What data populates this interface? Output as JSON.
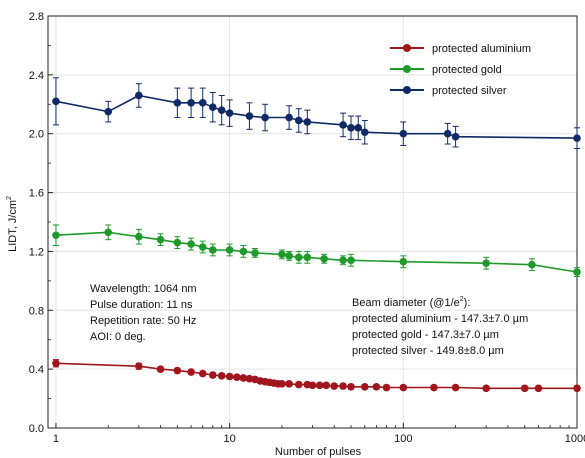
{
  "chart_data": {
    "type": "line",
    "x_scale": "log",
    "xlim": [
      0.9,
      1000
    ],
    "ylim": [
      0,
      2.8
    ],
    "grid": true,
    "xlabel": "Number of pulses",
    "ylabel": "LIDT, J/cm",
    "ylabel_sup": "2",
    "x_ticks": [
      1,
      10,
      100,
      1000
    ],
    "x_tick_labels": [
      "1",
      "10",
      "100",
      "1000"
    ],
    "y_ticks": [
      0,
      0.4,
      0.8,
      1.2,
      1.6,
      2.0,
      2.4,
      2.8
    ],
    "y_tick_labels": [
      "0.0",
      "0.4",
      "0.8",
      "1.2",
      "1.6",
      "2.0",
      "2.4",
      "2.8"
    ],
    "legend_position": "top-right",
    "series": [
      {
        "name": "protected aluminium",
        "color": "#a0161c",
        "x": [
          1,
          3,
          4,
          5,
          6,
          7,
          8,
          9,
          10,
          11,
          12,
          13,
          14,
          15,
          16,
          17,
          18,
          19,
          20,
          22,
          25,
          28,
          30,
          33,
          36,
          40,
          45,
          50,
          60,
          70,
          80,
          100,
          150,
          200,
          300,
          500,
          600,
          1000
        ],
        "y": [
          0.44,
          0.42,
          0.4,
          0.39,
          0.38,
          0.37,
          0.36,
          0.355,
          0.35,
          0.345,
          0.34,
          0.335,
          0.33,
          0.32,
          0.315,
          0.31,
          0.305,
          0.3,
          0.3,
          0.3,
          0.295,
          0.295,
          0.29,
          0.29,
          0.29,
          0.285,
          0.285,
          0.28,
          0.28,
          0.28,
          0.275,
          0.275,
          0.275,
          0.275,
          0.27,
          0.27,
          0.27,
          0.27
        ],
        "err": [
          0.025,
          0.02,
          0.015,
          0.015,
          0.015,
          0.015,
          0.015,
          0.015,
          0.015,
          0.015,
          0.015,
          0.015,
          0.015,
          0.015,
          0.015,
          0.015,
          0.015,
          0.015,
          0.015,
          0.015,
          0.015,
          0.015,
          0.015,
          0.015,
          0.015,
          0.015,
          0.015,
          0.015,
          0.015,
          0.015,
          0.015,
          0.015,
          0.015,
          0.015,
          0.015,
          0.015,
          0.015,
          0.015
        ]
      },
      {
        "name": "protected gold",
        "color": "#1f9a2a",
        "x": [
          1,
          2,
          3,
          4,
          5,
          6,
          7,
          8,
          10,
          12,
          14,
          20,
          22,
          25,
          28,
          35,
          45,
          50,
          100,
          300,
          550,
          1000
        ],
        "y": [
          1.31,
          1.33,
          1.3,
          1.28,
          1.26,
          1.25,
          1.23,
          1.21,
          1.21,
          1.2,
          1.19,
          1.18,
          1.17,
          1.16,
          1.16,
          1.15,
          1.14,
          1.14,
          1.13,
          1.12,
          1.11,
          1.06
        ],
        "err": [
          0.07,
          0.05,
          0.05,
          0.04,
          0.04,
          0.04,
          0.04,
          0.04,
          0.04,
          0.04,
          0.03,
          0.03,
          0.03,
          0.04,
          0.04,
          0.03,
          0.03,
          0.04,
          0.04,
          0.04,
          0.04,
          0.03
        ]
      },
      {
        "name": "protected silver",
        "color": "#0f2a66",
        "x": [
          1,
          2,
          3,
          5,
          6,
          7,
          8,
          9,
          10,
          13,
          16,
          22,
          25,
          28,
          45,
          50,
          55,
          60,
          100,
          180,
          200,
          1000
        ],
        "y": [
          2.22,
          2.15,
          2.26,
          2.21,
          2.21,
          2.21,
          2.18,
          2.16,
          2.14,
          2.12,
          2.11,
          2.11,
          2.09,
          2.08,
          2.06,
          2.04,
          2.04,
          2.01,
          2.0,
          2.0,
          1.98,
          1.97
        ],
        "err": [
          0.16,
          0.07,
          0.08,
          0.1,
          0.1,
          0.1,
          0.1,
          0.1,
          0.09,
          0.09,
          0.09,
          0.08,
          0.08,
          0.08,
          0.08,
          0.08,
          0.08,
          0.08,
          0.08,
          0.07,
          0.07,
          0.07
        ]
      }
    ],
    "annotations": {
      "left_note": [
        "Wavelength: 1064 nm",
        "Pulse duration: 11 ns",
        "Repetition rate: 50 Hz",
        "AOI: 0 deg."
      ],
      "beam_title": "Beam diameter (@1/e",
      "beam_title_sup": "2",
      "beam_title_end": "):",
      "beam_lines": [
        "protected aluminium - 147.3±7.0 µm",
        "protected gold - 147.3±7.0 µm",
        "protected silver - 149.8±8.0 µm"
      ]
    }
  }
}
